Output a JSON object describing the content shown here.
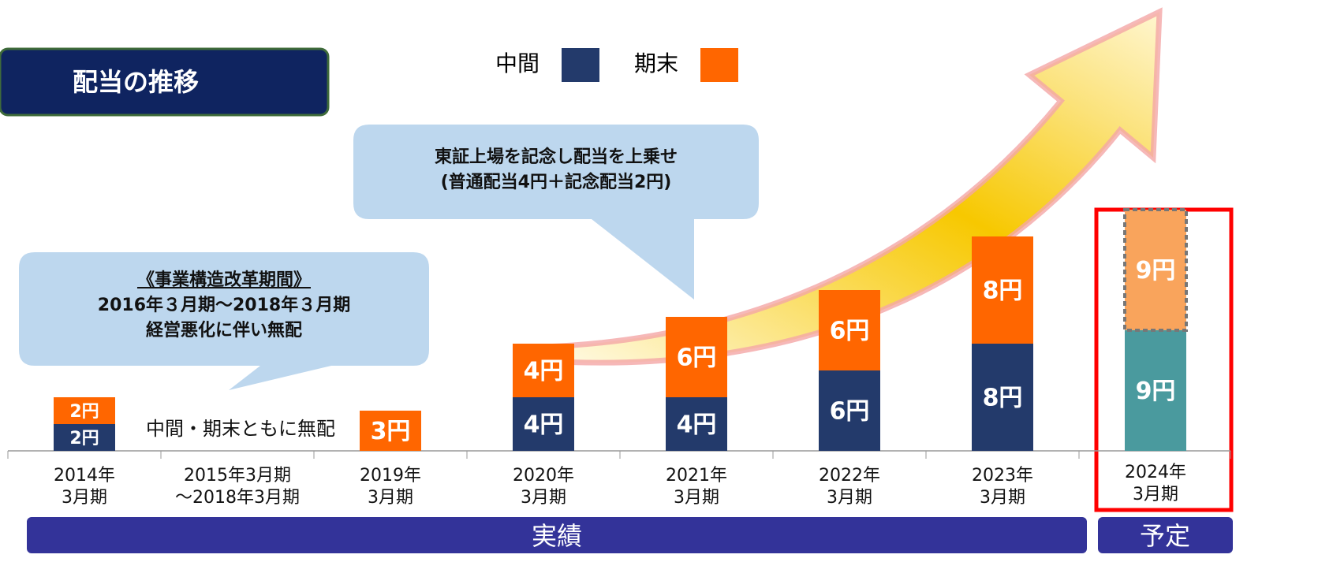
{
  "chart_data": {
    "type": "bar",
    "stacked": true,
    "title": "配当の推移",
    "categories": [
      "2014年\n3月期",
      "2015年3月期\n～2018年3月期",
      "2019年\n3月期",
      "2020年\n3月期",
      "2021年\n3月期",
      "2022年\n3月期",
      "2023年\n3月期",
      "2024年\n3月期"
    ],
    "series": [
      {
        "name": "中間",
        "color": "#233a6b",
        "forecast_color": "#4a9a9e",
        "values": [
          2,
          null,
          null,
          4,
          4,
          6,
          8,
          9
        ],
        "value_labels": [
          "2円",
          null,
          null,
          "4円",
          "4円",
          "6円",
          "8円",
          "9円"
        ]
      },
      {
        "name": "期末",
        "color": "#ff6600",
        "forecast_color": "#f9a45c",
        "values": [
          2,
          null,
          3,
          4,
          6,
          6,
          8,
          9
        ],
        "value_labels": [
          "2円",
          null,
          "3円",
          "4円",
          "6円",
          "6円",
          "8円",
          "9円"
        ]
      }
    ],
    "forecast": [
      false,
      false,
      false,
      false,
      false,
      false,
      false,
      true
    ],
    "ylim": [
      0,
      30
    ],
    "no_dividend_note": "中間・期末ともに無配",
    "callouts": [
      {
        "lines": [
          "東証上場を記念し配当を上乗せ",
          "(普通配当4円＋記念配当2円)"
        ]
      },
      {
        "lines": [
          "《事業構造改革期間》",
          "2016年３月期～2018年３月期",
          "経営悪化に伴い無配"
        ]
      }
    ],
    "periods": [
      "実績",
      "予定"
    ]
  }
}
